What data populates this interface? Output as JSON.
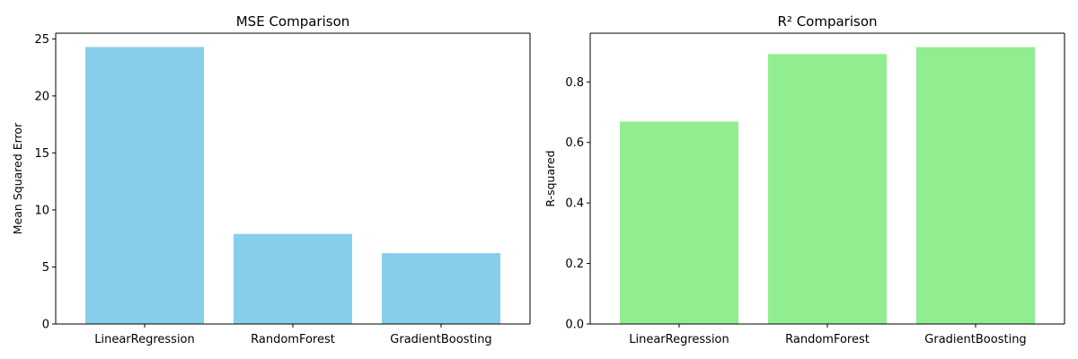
{
  "chart_data": [
    {
      "type": "bar",
      "title": "MSE Comparison",
      "xlabel": "",
      "ylabel": "Mean Squared Error",
      "categories": [
        "LinearRegression",
        "RandomForest",
        "GradientBoosting"
      ],
      "values": [
        24.29,
        7.9,
        6.21
      ],
      "ylim": [
        0,
        25.5
      ],
      "yticks": [
        0,
        5,
        10,
        15,
        20,
        25
      ],
      "grid": false,
      "color": "#87ceeb"
    },
    {
      "type": "bar",
      "title": "R² Comparison",
      "xlabel": "",
      "ylabel": "R-squared",
      "categories": [
        "LinearRegression",
        "RandomForest",
        "GradientBoosting"
      ],
      "values": [
        0.669,
        0.892,
        0.915
      ],
      "ylim": [
        0,
        0.961
      ],
      "yticks": [
        0.0,
        0.2,
        0.4,
        0.6,
        0.8
      ],
      "ytick_labels": [
        "0.0",
        "0.2",
        "0.4",
        "0.6",
        "0.8"
      ],
      "grid": false,
      "color": "#90ee90"
    }
  ]
}
